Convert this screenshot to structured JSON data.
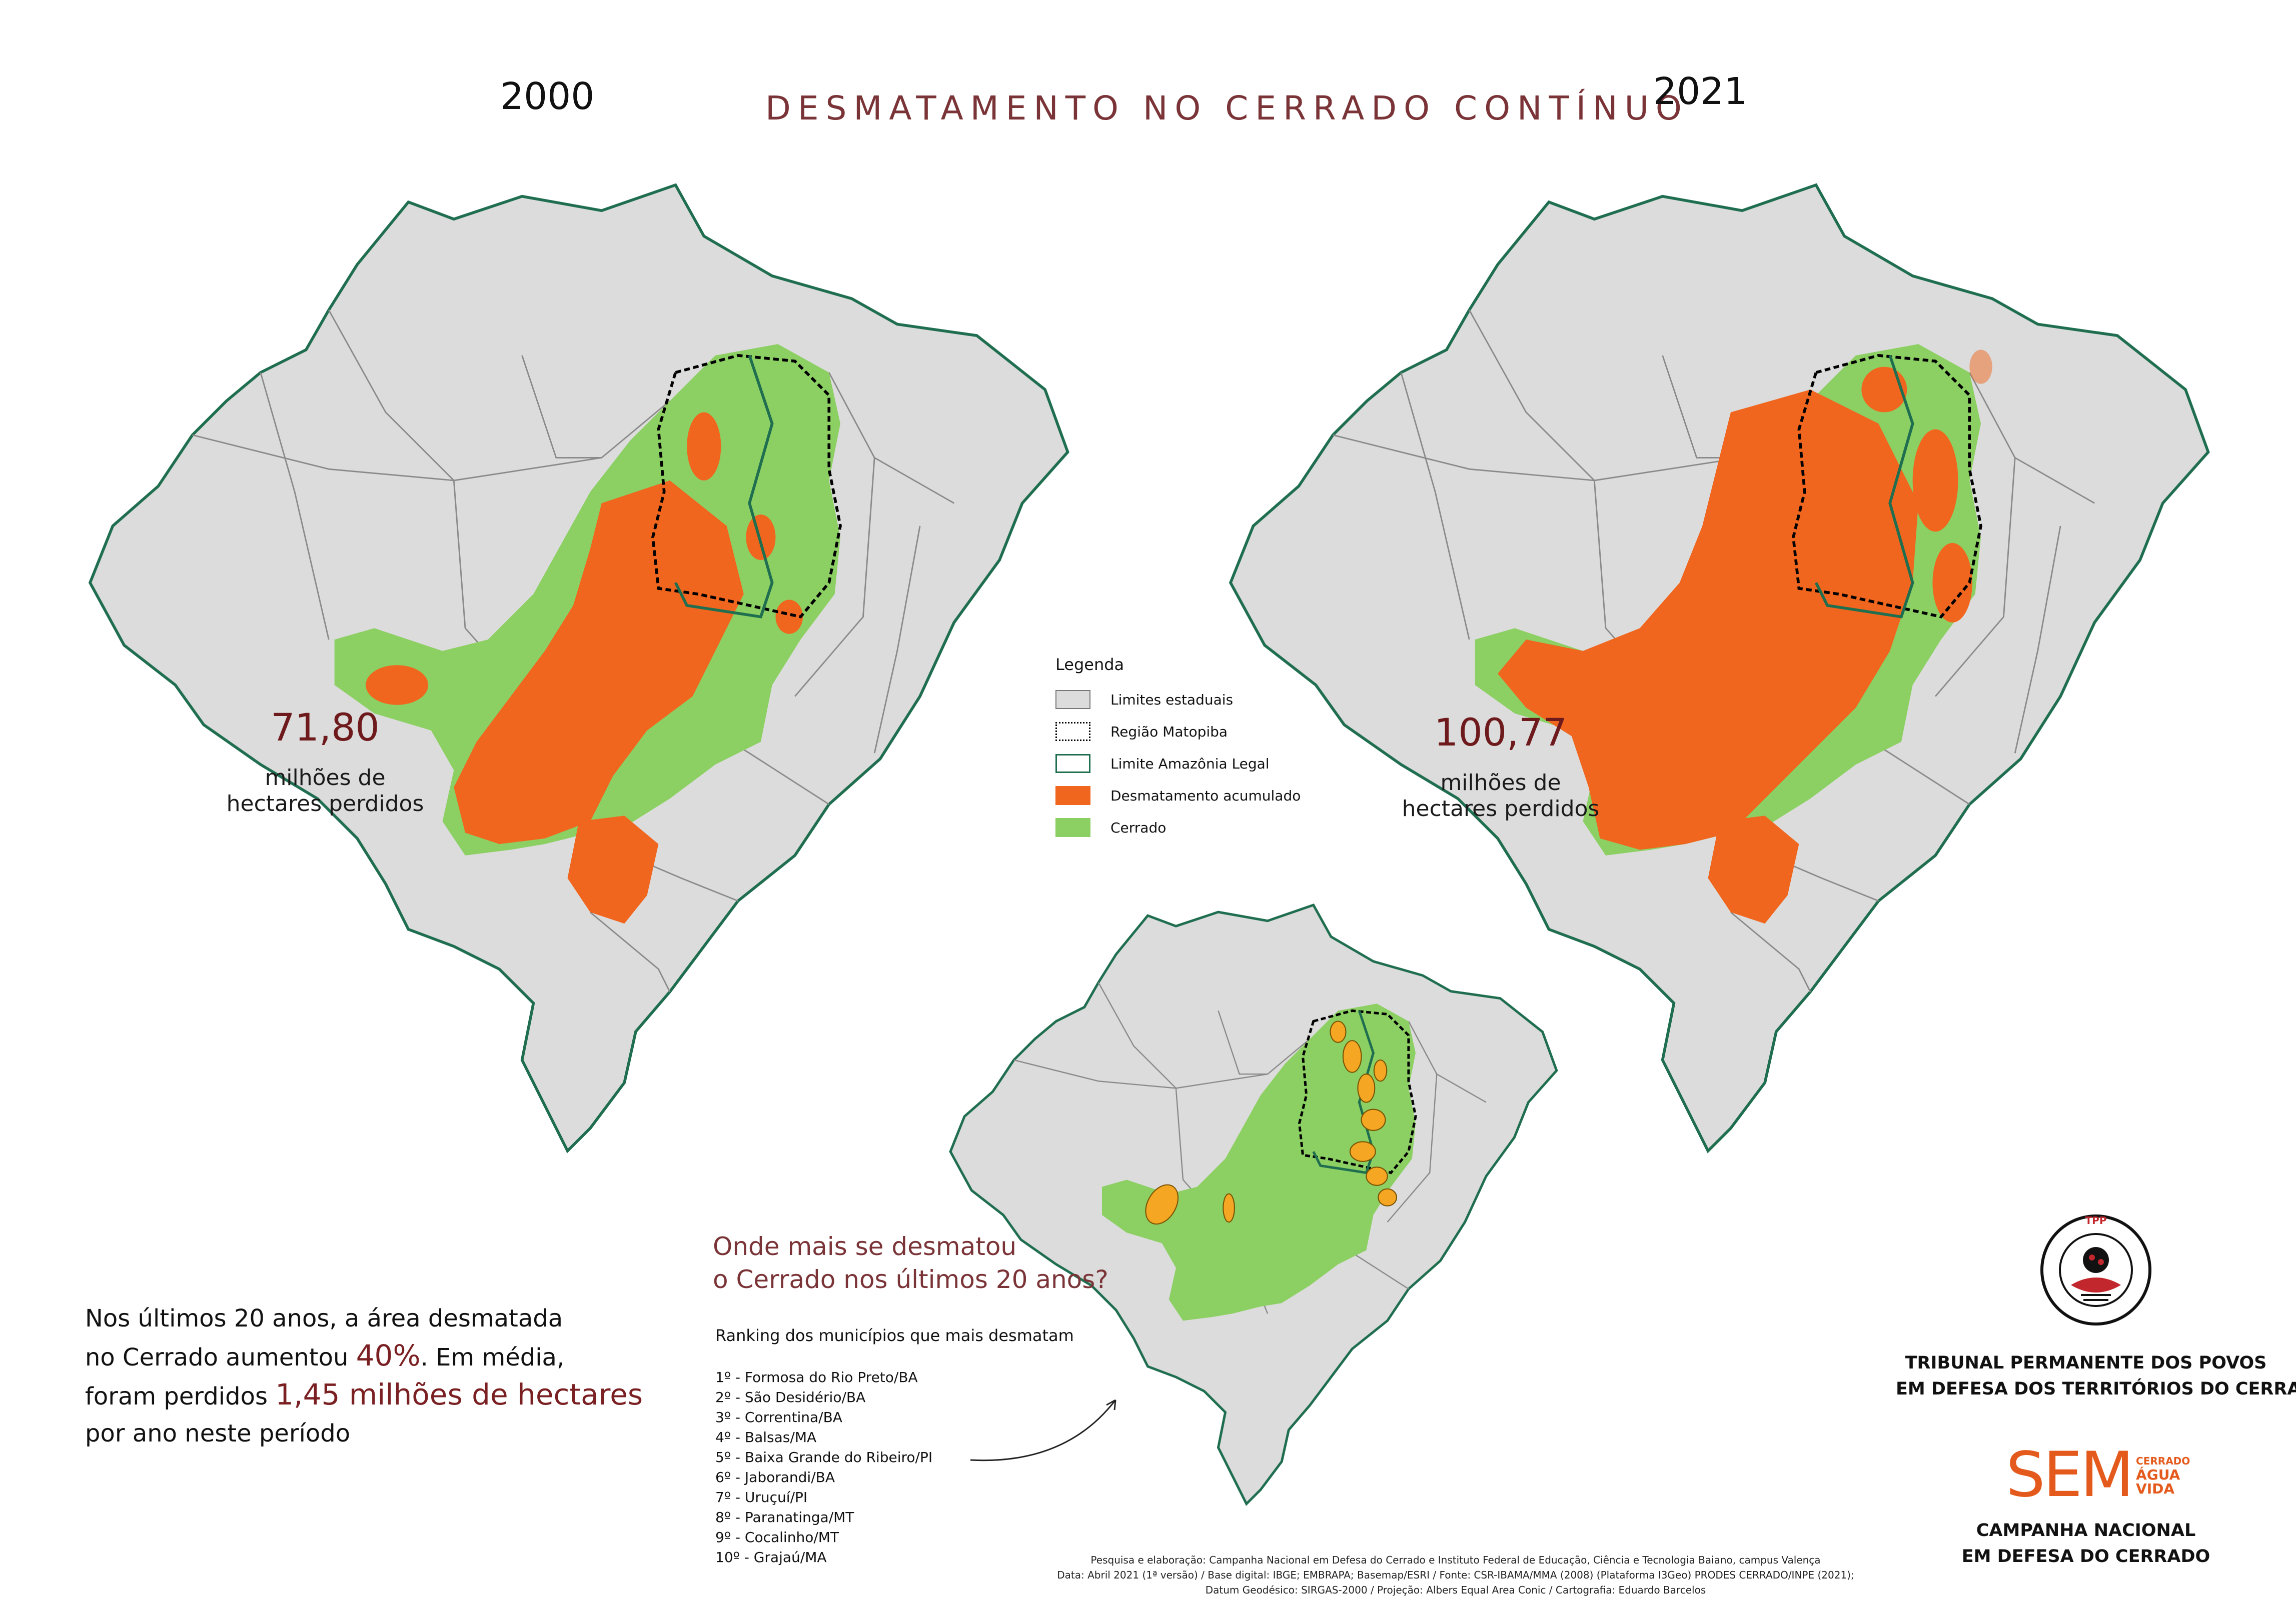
{
  "header": {
    "title": "DESMATAMENTO NO CERRADO CONTÍNUO",
    "year_left": "2000",
    "year_right": "2021"
  },
  "map_left": {
    "value": "71,80",
    "caption_line1": "milhões de",
    "caption_line2": "hectares perdidos"
  },
  "map_right": {
    "value": "100,77",
    "caption_line1": "milhões de",
    "caption_line2": "hectares perdidos"
  },
  "legend": {
    "title": "Legenda",
    "items": [
      {
        "label": "Limites estaduais",
        "color": "#dcdcdc"
      },
      {
        "label": "Região Matopiba",
        "color": "#000000"
      },
      {
        "label": "Limite Amazônia Legal",
        "color": "#1f6e4f"
      },
      {
        "label": "Desmatamento acumulado",
        "color": "#f0661e"
      },
      {
        "label": "Cerrado",
        "color": "#8ccf63"
      }
    ]
  },
  "ranking": {
    "question_line1": "Onde mais se desmatou",
    "question_line2": "o Cerrado nos últimos 20 anos?",
    "subtitle": "Ranking dos municípios que mais desmatam",
    "items": [
      "1º - Formosa do Rio Preto/BA",
      "2º - São Desidério/BA",
      "3º - Correntina/BA",
      "4º - Balsas/MA",
      "5º - Baixa Grande do Ribeiro/PI",
      "6º - Jaborandi/BA",
      "7º - Uruçuí/PI",
      "8º - Paranatinga/MT",
      "9º - Cocalinho/MT",
      "10º - Grajaú/MA"
    ],
    "highlight_color": "#f5a623"
  },
  "summary": {
    "part1": "Nos últimos 20 anos, a área desmatada",
    "part2": "no Cerrado aumentou",
    "highlight1": "40%",
    "part3": ". Em média,",
    "part4": "foram perdidos",
    "highlight2": "1,45 milhões de hectares",
    "part5": "por ano neste período"
  },
  "credits": {
    "line1": "Pesquisa e elaboração: Campanha Nacional em Defesa do Cerrado e Instituto Federal de Educação, Ciência e Tecnologia Baiano, campus Valença",
    "line2": "Data: Abril 2021 (1ª versão) / Base digital: IBGE; EMBRAPA; Basemap/ESRI / Fonte: CSR-IBAMA/MMA (2008) (Plataforma I3Geo) PRODES CERRADO/INPE (2021);",
    "line3": "Datum Geodésico: SIRGAS-2000 / Projeção: Albers Equal Area Conic / Cartografia: Eduardo Barcelos"
  },
  "orgs": {
    "tribunal_line1": "TRIBUNAL PERMANENTE DOS POVOS",
    "tribunal_line2": "EM DEFESA DOS TERRITÓRIOS DO CERRADO",
    "campaign_line1": "CAMPANHA NACIONAL",
    "campaign_line2": "EM DEFESA DO CERRADO",
    "sem_logo": "SEM",
    "sem_words": [
      "CERRADO",
      "ÁGUA",
      "VIDA"
    ],
    "seal_top": "TPP",
    "seal_ring": "TRIBUNAL PERMANENTE DOS POVOS"
  },
  "colors": {
    "state_fill": "#dcdcdc",
    "state_border": "#8a8a8a",
    "amazon_border": "#1f6e4f",
    "deforest": "#f0661e",
    "cerrado": "#8ccf63",
    "title": "#7a3336",
    "value": "#6e1a1c"
  }
}
